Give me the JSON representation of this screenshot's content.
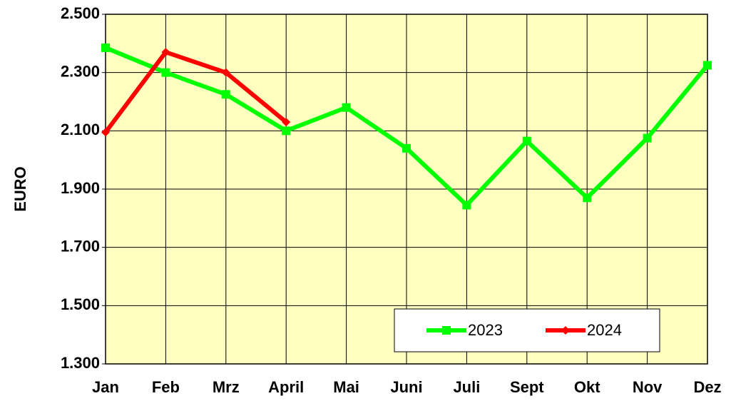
{
  "chart_data": {
    "type": "line",
    "y_label": "EURO",
    "categories": [
      "Jan",
      "Feb",
      "Mrz",
      "April",
      "Mai",
      "Juni",
      "Juli",
      "Sept",
      "Okt",
      "Nov",
      "Dez"
    ],
    "series": [
      {
        "name": "2023",
        "color": "#00ff00",
        "values": [
          2385,
          2300,
          2225,
          2100,
          2180,
          2040,
          1845,
          2065,
          1870,
          2075,
          2325
        ]
      },
      {
        "name": "2024",
        "color": "#ff0000",
        "values": [
          2095,
          2370,
          2300,
          2130,
          null,
          null,
          null,
          null,
          null,
          null,
          null
        ]
      }
    ],
    "ylim": [
      1300,
      2500
    ],
    "yticks": [
      {
        "value": 1300,
        "label": "1.300"
      },
      {
        "value": 1500,
        "label": "1.500"
      },
      {
        "value": 1700,
        "label": "1.700"
      },
      {
        "value": 1900,
        "label": "1.900"
      },
      {
        "value": 2100,
        "label": "2.100"
      },
      {
        "value": 2300,
        "label": "2.300"
      },
      {
        "value": 2500,
        "label": "2.500"
      }
    ],
    "grid": true,
    "plot_background": "#ffffc0"
  }
}
